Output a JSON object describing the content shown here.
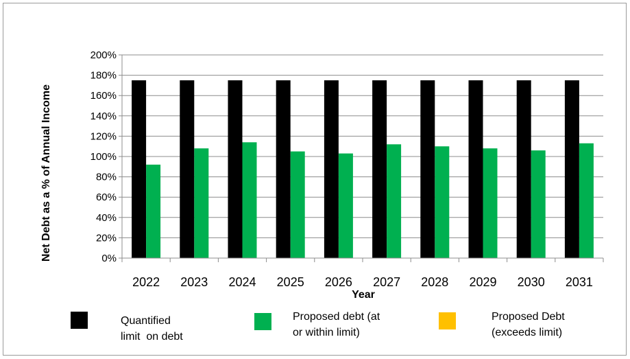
{
  "chart_data": {
    "type": "bar",
    "title": "",
    "xlabel": "Year",
    "ylabel": "Net Debt as a % of Annual Income",
    "categories": [
      "2022",
      "2023",
      "2024",
      "2025",
      "2026",
      "2027",
      "2028",
      "2029",
      "2030",
      "2031"
    ],
    "ylim": [
      0,
      200
    ],
    "yticks": [
      "0%",
      "20%",
      "40%",
      "60%",
      "80%",
      "100%",
      "120%",
      "140%",
      "160%",
      "180%",
      "200%"
    ],
    "grid": true,
    "legend_position": "bottom",
    "series": [
      {
        "name": "Quantified limit on debt",
        "color": "#000000",
        "values": [
          175,
          175,
          175,
          175,
          175,
          175,
          175,
          175,
          175,
          175
        ]
      },
      {
        "name": "Proposed debt (at or within limit)",
        "color": "#00B050",
        "values": [
          92,
          108,
          114,
          105,
          103,
          112,
          110,
          108,
          106,
          113
        ]
      },
      {
        "name": "Proposed Debt (exceeds limit)",
        "color": "#FFC000",
        "values": [
          0,
          0,
          0,
          0,
          0,
          0,
          0,
          0,
          0,
          0
        ]
      }
    ],
    "legend": [
      {
        "lines": [
          "Quantified",
          "limit  on debt"
        ],
        "color": "#000000"
      },
      {
        "lines": [
          "Proposed debt (at",
          "or within limit)"
        ],
        "color": "#00B050"
      },
      {
        "lines": [
          "Proposed Debt",
          "(exceeds limit)"
        ],
        "color": "#FFC000"
      }
    ]
  }
}
